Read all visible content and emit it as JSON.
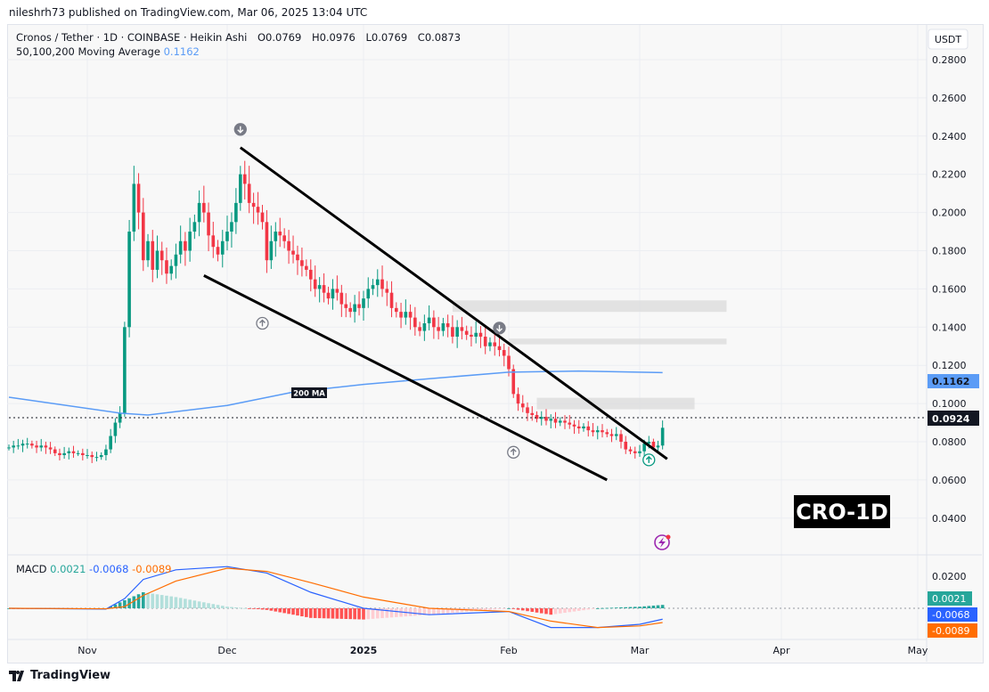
{
  "header": {
    "published": "nileshrh73 published on TradingView.com, Mar 06, 2025 13:04 UTC"
  },
  "legend": {
    "symbol": "Cronos / Tether · 1D · COINBASE · Heikin Ashi",
    "open": "O0.0769",
    "high": "H0.0976",
    "low": "L0.0769",
    "close": "C0.0873",
    "ma_label": "50,100,200 Moving Average",
    "ma_value": "0.1162"
  },
  "macd_legend": {
    "label": "MACD",
    "macd": "0.0021",
    "signal_diff": "-0.0068",
    "signal": "-0.0089"
  },
  "footer": {
    "brand": "TradingView"
  },
  "colors": {
    "up": "#089981",
    "down": "#f23645",
    "ma": "#5b9cf6",
    "macd": "#2962ff",
    "signal": "#ff6d00",
    "hist_up": "#26a69a",
    "hist_down": "#ff5252"
  },
  "chart_data": [
    {
      "type": "candlestick",
      "title": "Cronos / Tether · 1D · COINBASE · Heikin Ashi",
      "currency": "USDT",
      "start_date": "2024-10-15",
      "closes": [
        0.077,
        0.078,
        0.078,
        0.079,
        0.079,
        0.078,
        0.077,
        0.078,
        0.077,
        0.076,
        0.074,
        0.073,
        0.074,
        0.075,
        0.074,
        0.074,
        0.073,
        0.073,
        0.072,
        0.072,
        0.073,
        0.076,
        0.083,
        0.09,
        0.095,
        0.14,
        0.19,
        0.215,
        0.2,
        0.175,
        0.185,
        0.17,
        0.18,
        0.175,
        0.168,
        0.172,
        0.178,
        0.185,
        0.18,
        0.19,
        0.195,
        0.205,
        0.2,
        0.188,
        0.182,
        0.178,
        0.185,
        0.19,
        0.195,
        0.205,
        0.22,
        0.215,
        0.205,
        0.203,
        0.2,
        0.195,
        0.175,
        0.185,
        0.19,
        0.188,
        0.185,
        0.18,
        0.178,
        0.175,
        0.172,
        0.17,
        0.165,
        0.16,
        0.162,
        0.158,
        0.155,
        0.16,
        0.158,
        0.152,
        0.15,
        0.148,
        0.152,
        0.15,
        0.155,
        0.16,
        0.162,
        0.165,
        0.16,
        0.158,
        0.15,
        0.148,
        0.145,
        0.148,
        0.145,
        0.14,
        0.138,
        0.142,
        0.145,
        0.14,
        0.138,
        0.142,
        0.14,
        0.135,
        0.14,
        0.138,
        0.136,
        0.135,
        0.137,
        0.135,
        0.13,
        0.132,
        0.13,
        0.128,
        0.125,
        0.118,
        0.105,
        0.1,
        0.098,
        0.095,
        0.094,
        0.092,
        0.093,
        0.091,
        0.092,
        0.09,
        0.091,
        0.09,
        0.089,
        0.088,
        0.087,
        0.088,
        0.086,
        0.085,
        0.086,
        0.085,
        0.084,
        0.083,
        0.084,
        0.08,
        0.076,
        0.075,
        0.074,
        0.075,
        0.079,
        0.08,
        0.077,
        0.078,
        0.0873
      ],
      "ma200": {
        "label": "200 MA",
        "dates": [
          "2024-10-15",
          "2024-11-08",
          "2024-11-14",
          "2024-12-01",
          "2024-12-16",
          "2025-01-01",
          "2025-01-15",
          "2025-02-01",
          "2025-02-16",
          "2025-03-06"
        ],
        "values": [
          0.1033,
          0.095,
          0.094,
          0.099,
          0.106,
          0.11,
          0.113,
          0.1164,
          0.117,
          0.1162
        ]
      },
      "trendlines": [
        {
          "from": [
            "2024-12-04",
            0.234
          ],
          "to": [
            "2025-03-07",
            0.071
          ]
        },
        {
          "from": [
            "2024-11-26",
            0.167
          ],
          "to": [
            "2025-02-22",
            0.06
          ]
        }
      ],
      "zones": [
        {
          "from": "2025-01-20",
          "to": "2025-03-20",
          "low": 0.148,
          "high": 0.154
        },
        {
          "from": "2025-02-01",
          "to": "2025-03-20",
          "low": 0.131,
          "high": 0.134
        },
        {
          "from": "2025-02-07",
          "to": "2025-03-13",
          "low": 0.097,
          "high": 0.103
        }
      ],
      "markers": [
        {
          "date": "2024-12-04",
          "price": 0.2435,
          "dir": "down"
        },
        {
          "date": "2024-12-09",
          "price": 0.142,
          "dir": "up"
        },
        {
          "date": "2025-01-30",
          "price": 0.1395,
          "dir": "down"
        },
        {
          "date": "2025-02-02",
          "price": 0.0745,
          "dir": "up"
        },
        {
          "date": "2025-03-03",
          "price": 0.0705,
          "dir": "up"
        }
      ],
      "last_price": "0.0924",
      "ma_price_label": "0.1162",
      "watermark": "CRO-1D",
      "y_ticks": [
        "0.2800",
        "0.2600",
        "0.2400",
        "0.2200",
        "0.2000",
        "0.1800",
        "0.1600",
        "0.1400",
        "0.1200",
        "0.1000",
        "0.0800",
        "0.0600",
        "0.0400"
      ],
      "ylim": [
        0.04,
        0.28
      ],
      "x_ticks": [
        {
          "label": "Nov",
          "date": "2024-11-01"
        },
        {
          "label": "Dec",
          "date": "2024-12-01"
        },
        {
          "label": "2025",
          "date": "2025-01-01"
        },
        {
          "label": "Feb",
          "date": "2025-02-01"
        },
        {
          "label": "Mar",
          "date": "2025-03-01"
        },
        {
          "label": "Apr",
          "date": "2025-04-01"
        },
        {
          "label": "May",
          "date": "2025-05-01"
        }
      ]
    },
    {
      "type": "line",
      "title": "MACD",
      "dates": [
        "2024-10-15",
        "2024-11-05",
        "2024-11-09",
        "2024-11-13",
        "2024-11-20",
        "2024-12-01",
        "2024-12-10",
        "2024-12-20",
        "2025-01-01",
        "2025-01-15",
        "2025-02-01",
        "2025-02-10",
        "2025-02-20",
        "2025-03-01",
        "2025-03-06"
      ],
      "macd": [
        0.0,
        -0.0005,
        0.006,
        0.018,
        0.024,
        0.026,
        0.022,
        0.01,
        0.0,
        -0.004,
        -0.002,
        -0.012,
        -0.012,
        -0.01,
        -0.0068
      ],
      "signal": [
        0.0,
        -0.0003,
        0.001,
        0.008,
        0.017,
        0.025,
        0.023,
        0.016,
        0.007,
        0.0,
        -0.002,
        -0.008,
        -0.012,
        -0.011,
        -0.0089
      ],
      "y_ticks": [
        "0.0200"
      ],
      "labels": {
        "macd": "0.0021",
        "signal_diff": "-0.0068",
        "signal": "-0.0089"
      }
    }
  ]
}
